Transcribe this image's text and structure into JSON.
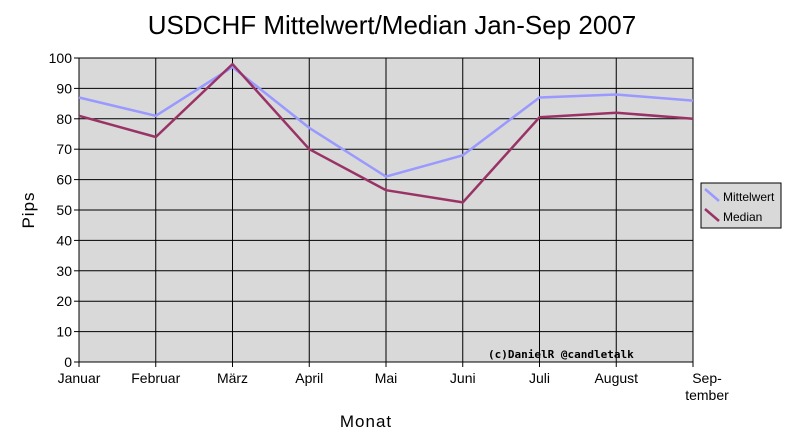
{
  "chart_data": {
    "type": "line",
    "title": "USDCHF Mittelwert/Median Jan-Sep 2007",
    "xlabel": "Monat",
    "ylabel": "Pips",
    "categories": [
      "Januar",
      "Februar",
      "März",
      "April",
      "Mai",
      "Juni",
      "Juli",
      "August",
      "Sep-\ntember"
    ],
    "ylim": [
      0,
      100
    ],
    "yticks": [
      0,
      10,
      20,
      30,
      40,
      50,
      60,
      70,
      80,
      90,
      100
    ],
    "grid": true,
    "legend_position": "right",
    "series": [
      {
        "name": "Mittelwert",
        "color": "#9999ff",
        "values": [
          87,
          81,
          97,
          77,
          61,
          68,
          87,
          88,
          86
        ]
      },
      {
        "name": "Median",
        "color": "#993366",
        "values": [
          81,
          74,
          98,
          70,
          56.5,
          52.5,
          80.5,
          82,
          80
        ]
      }
    ],
    "plot_background": "#d9d9d9",
    "annotation": "(c)DanielR @candletalk"
  }
}
